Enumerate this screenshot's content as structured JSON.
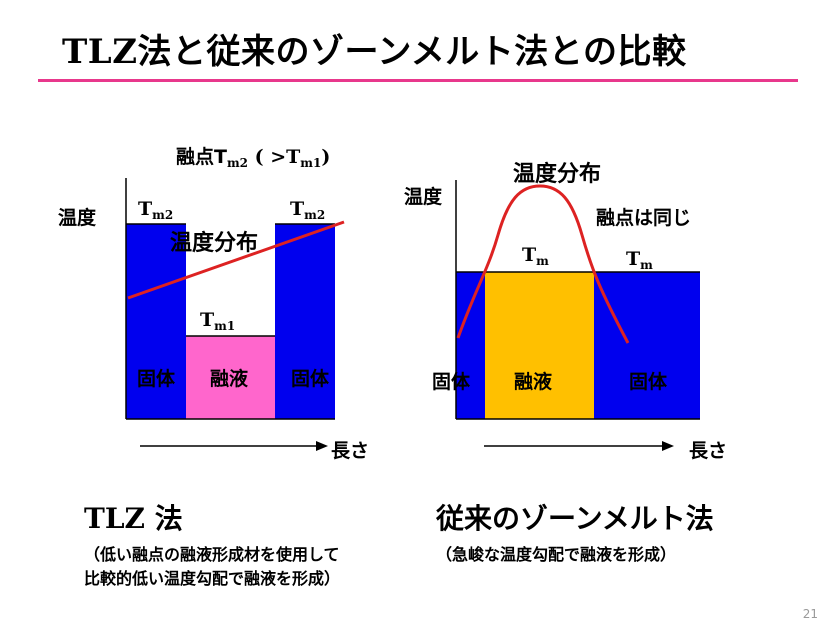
{
  "slide": {
    "title": "TLZ法と従来のゾーンメルト法との比較",
    "page_number": "21"
  },
  "left": {
    "melting_point_label_prefix": "融点T",
    "melting_point_label_sub": "m2",
    "melting_point_label_mid": " ( >T",
    "melting_point_label_sub2": "m1",
    "melting_point_label_suffix": ")",
    "temperature_axis": "温度",
    "tm2_left": "T",
    "tm2_left_sub": "m2",
    "tm2_right": "T",
    "tm2_right_sub": "m2",
    "tm1": "T",
    "tm1_sub": "m1",
    "temp_dist": "温度分布",
    "solid_left": "固体",
    "melt": "融液",
    "solid_right": "固体",
    "length_axis": "長さ",
    "method": "TLZ 法",
    "desc_line1": "（低い融点の融液形成材を使用して",
    "desc_line2": "比較的低い温度勾配で融液を形成）"
  },
  "right": {
    "temperature_axis": "温度",
    "temp_dist": "温度分布",
    "same_mp": "融点は同じ",
    "tm_a": "T",
    "tm_a_sub": "m",
    "tm_b": "T",
    "tm_b_sub": "m",
    "solid_left": "固体",
    "melt": "融液",
    "solid_right": "固体",
    "length_axis": "長さ",
    "method": "従来のゾーンメルト法",
    "desc_line1": "（急峻な温度勾配で融液を形成）"
  },
  "colors": {
    "solid": "#0000ee",
    "tlz_melt": "#ff66cc",
    "zone_melt": "#ffc000",
    "temp_curve": "#dd2222",
    "rule": "#e8388c"
  }
}
